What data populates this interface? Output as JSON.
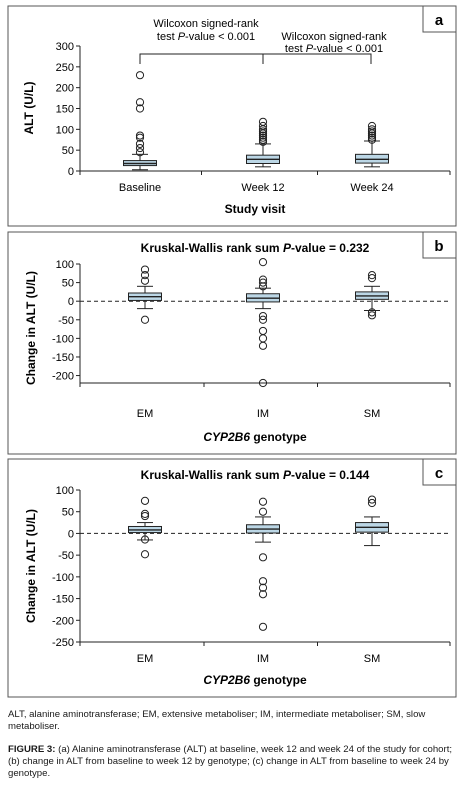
{
  "colors": {
    "box_fill": "#bcd7e6",
    "box_stroke": "#222222",
    "frame": "#555555"
  },
  "panels": [
    {
      "letter": "a",
      "title": "",
      "ylabel": "ALT (U/L)",
      "xlabel": "Study visit",
      "xlabel_italic_prefix": "",
      "annotations": [
        {
          "line1": "Wilcoxon signed-rank",
          "prefix": "test ",
          "italic": "P",
          "suffix": "-value < 0.001"
        },
        {
          "line1": "Wilcoxon signed-rank",
          "prefix": "test ",
          "italic": "P",
          "suffix": "-value < 0.001"
        }
      ]
    },
    {
      "letter": "b",
      "title": {
        "prefix": "Kruskal-Wallis rank sum ",
        "italic": "P",
        "suffix": "-value = 0.232"
      },
      "ylabel": "Change in ALT (U/L)",
      "xlabel": " genotype",
      "xlabel_italic_prefix": "CYP2B6"
    },
    {
      "letter": "c",
      "title": {
        "prefix": "Kruskal-Wallis rank sum ",
        "italic": "P",
        "suffix": "-value = 0.144"
      },
      "ylabel": "Change in ALT (U/L)",
      "xlabel": " genotype",
      "xlabel_italic_prefix": "CYP2B6"
    }
  ],
  "chart_data": [
    {
      "type": "box",
      "categories": [
        "Baseline",
        "Week 12",
        "Week 24"
      ],
      "ylim": [
        0,
        300
      ],
      "yticks": [
        0,
        50,
        100,
        150,
        200,
        250,
        300
      ],
      "zero_line": false,
      "boxes": [
        {
          "whislo": 3,
          "q1": 13,
          "med": 18,
          "q3": 25,
          "whishi": 40,
          "outliers": [
            45,
            55,
            65,
            80,
            85,
            150,
            165,
            230
          ]
        },
        {
          "whislo": 10,
          "q1": 18,
          "med": 28,
          "q3": 38,
          "whishi": 65,
          "outliers": [
            70,
            75,
            80,
            85,
            90,
            95,
            100,
            108,
            118
          ]
        },
        {
          "whislo": 10,
          "q1": 19,
          "med": 28,
          "q3": 40,
          "whishi": 72,
          "outliers": [
            75,
            80,
            85,
            90,
            95,
            100,
            108
          ]
        }
      ]
    },
    {
      "type": "box",
      "categories": [
        "EM",
        "IM",
        "SM"
      ],
      "ylim": [
        -220,
        100
      ],
      "yticks": [
        -200,
        -150,
        -100,
        -50,
        0,
        50,
        100
      ],
      "zero_line": true,
      "boxes": [
        {
          "whislo": -20,
          "q1": 2,
          "med": 12,
          "q3": 22,
          "whishi": 40,
          "outliers": [
            -50,
            55,
            70,
            85
          ]
        },
        {
          "whislo": -20,
          "q1": -2,
          "med": 8,
          "q3": 20,
          "whishi": 35,
          "outliers": [
            -220,
            -120,
            -100,
            -80,
            -50,
            -40,
            40,
            50,
            58,
            105
          ]
        },
        {
          "whislo": -25,
          "q1": 5,
          "med": 14,
          "q3": 25,
          "whishi": 40,
          "outliers": [
            -38,
            -30,
            62,
            70
          ]
        }
      ]
    },
    {
      "type": "box",
      "categories": [
        "EM",
        "IM",
        "SM"
      ],
      "ylim": [
        -250,
        100
      ],
      "yticks": [
        -250,
        -200,
        -150,
        -100,
        -50,
        0,
        50,
        100
      ],
      "zero_line": true,
      "boxes": [
        {
          "whislo": -15,
          "q1": 2,
          "med": 8,
          "q3": 16,
          "whishi": 25,
          "outliers": [
            -48,
            -14,
            40,
            45,
            75
          ]
        },
        {
          "whislo": -20,
          "q1": 1,
          "med": 10,
          "q3": 20,
          "whishi": 38,
          "outliers": [
            -215,
            -140,
            -125,
            -110,
            -55,
            50,
            73
          ]
        },
        {
          "whislo": -28,
          "q1": 3,
          "med": 14,
          "q3": 25,
          "whishi": 38,
          "outliers": [
            70,
            78
          ]
        }
      ]
    }
  ],
  "caption": {
    "abbreviations": "ALT, alanine aminotransferase; EM, extensive metaboliser; IM, intermediate metaboliser; SM, slow metaboliser.",
    "figure_label": "FIGURE 3:",
    "figure_text": " (a) Alanine aminotransferase (ALT) at baseline, week 12 and week 24 of the study for cohort; (b) change in ALT from baseline to week 12 by genotype; (c) change in ALT from baseline to week 24 by genotype."
  }
}
